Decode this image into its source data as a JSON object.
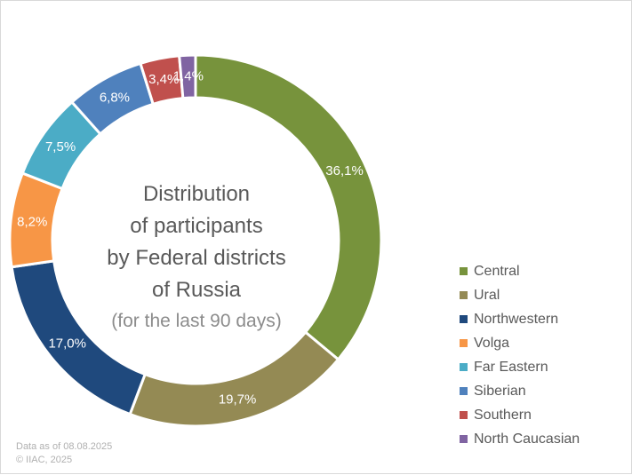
{
  "chart_data": {
    "type": "pie",
    "variant": "donut",
    "title_lines": [
      "Distribution",
      "of participants",
      "by Federal districts",
      "of Russia"
    ],
    "subtitle": "(for the last 90 days)",
    "legend_position": "right",
    "slices": [
      {
        "name": "Central",
        "value": 36.1,
        "label": "36,1%",
        "color": "#77933c"
      },
      {
        "name": "Ural",
        "value": 19.7,
        "label": "19,7%",
        "color": "#948a54"
      },
      {
        "name": "Northwestern",
        "value": 17.0,
        "label": "17,0%",
        "color": "#1f497d"
      },
      {
        "name": "Volga",
        "value": 8.2,
        "label": "8,2%",
        "color": "#f79646"
      },
      {
        "name": "Far Eastern",
        "value": 7.5,
        "label": "7,5%",
        "color": "#4bacc6"
      },
      {
        "name": "Siberian",
        "value": 6.8,
        "label": "6,8%",
        "color": "#4f81bd"
      },
      {
        "name": "Southern",
        "value": 3.4,
        "label": "3,4%",
        "color": "#c0504d"
      },
      {
        "name": "North Caucasian",
        "value": 1.4,
        "label": "1,4%",
        "color": "#8064a2"
      }
    ]
  },
  "footer": {
    "line1": "Data as of 08.08.2025",
    "line2": "© IIAC, 2025"
  }
}
